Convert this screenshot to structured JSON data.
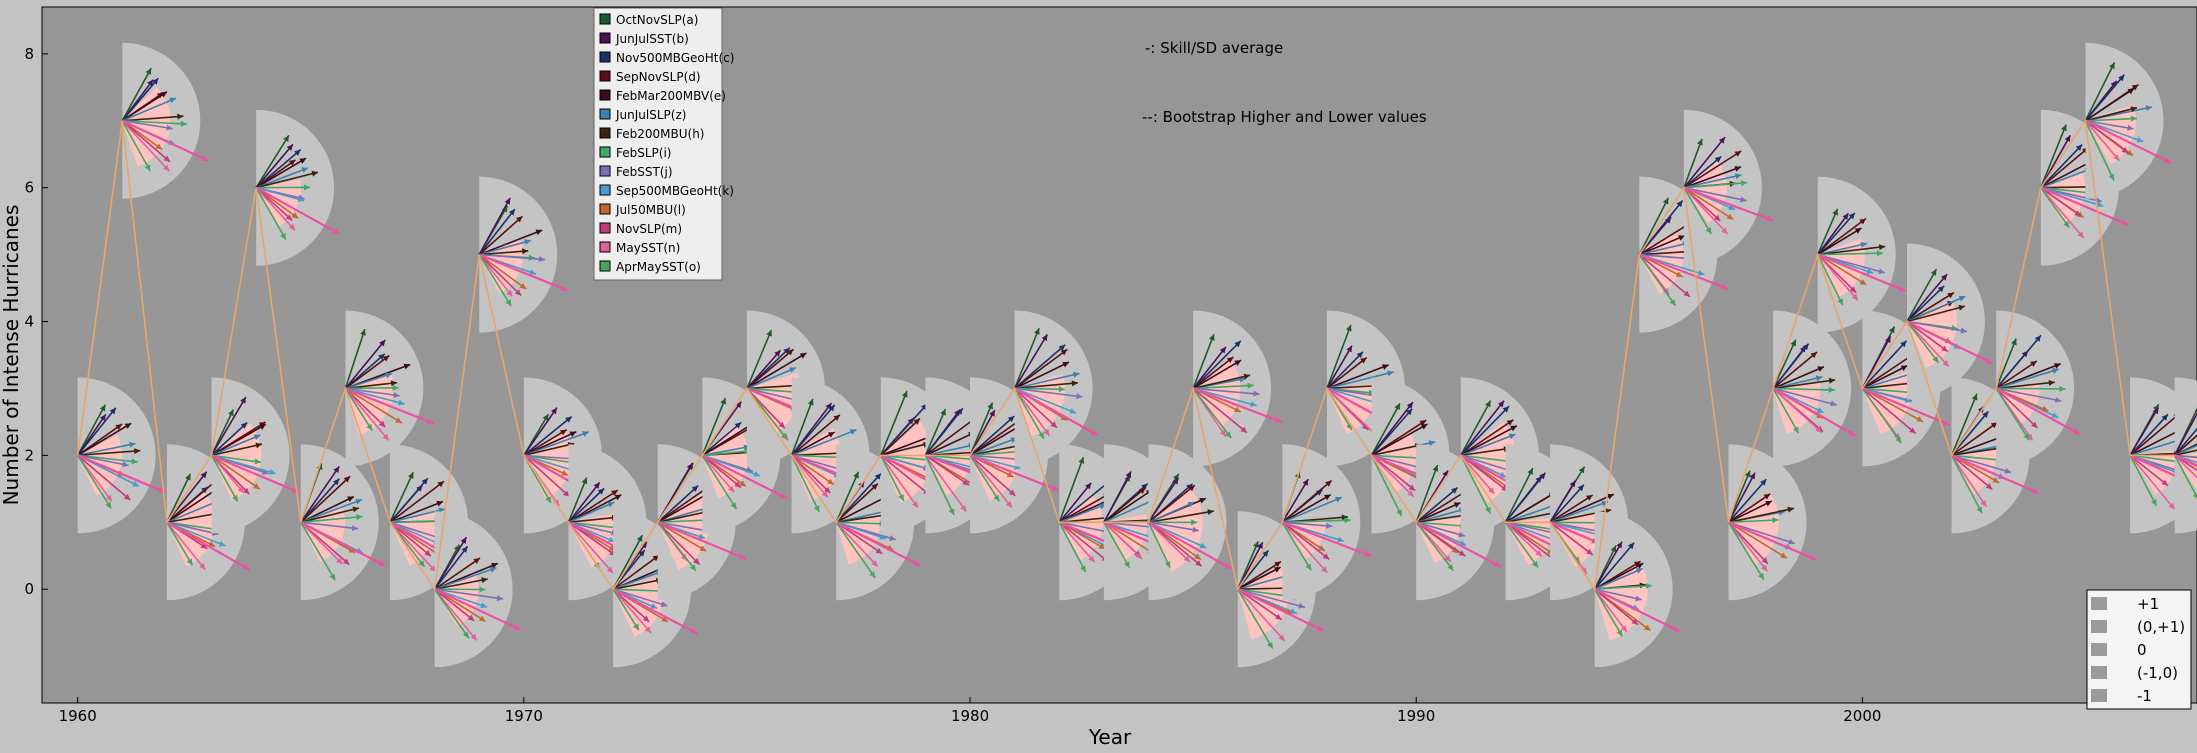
{
  "chart_data": {
    "type": "line",
    "xlabel": "Year",
    "ylabel": "Number of Intense Hurricanes",
    "xlim": [
      1959.2,
      2007.5
    ],
    "ylim": [
      -1.7,
      8.7
    ],
    "xticks": [
      1960,
      1970,
      1980,
      1990,
      2000
    ],
    "yticks": [
      0,
      2,
      4,
      6,
      8
    ],
    "grid": false,
    "background_color": "#969696",
    "line_color": "#e8a66a",
    "x": [
      1960,
      1961,
      1962,
      1963,
      1964,
      1965,
      1966,
      1967,
      1968,
      1969,
      1970,
      1971,
      1972,
      1973,
      1974,
      1975,
      1976,
      1977,
      1978,
      1979,
      1980,
      1981,
      1982,
      1983,
      1984,
      1985,
      1986,
      1987,
      1988,
      1989,
      1990,
      1991,
      1992,
      1993,
      1994,
      1995,
      1996,
      1997,
      1998,
      1999,
      2000,
      2001,
      2002,
      2003,
      2004,
      2005,
      2006,
      2007
    ],
    "y": [
      2,
      7,
      1,
      2,
      6,
      1,
      3,
      1,
      0,
      5,
      2,
      1,
      0,
      1,
      2,
      3,
      2,
      1,
      2,
      2,
      2,
      3,
      1,
      1,
      1,
      3,
      0,
      1,
      3,
      2,
      1,
      2,
      1,
      1,
      0,
      5,
      6,
      1,
      3,
      5,
      3,
      4,
      2,
      3,
      6,
      7,
      2,
      2
    ],
    "series": [
      {
        "name": "OctNovSLP(a)",
        "color": "#1e5a2a"
      },
      {
        "name": "JunJulSST(b)",
        "color": "#4a1158"
      },
      {
        "name": "Nov500MBGeoHt(c)",
        "color": "#1a2f6b"
      },
      {
        "name": "SepNovSLP(d)",
        "color": "#5a1010"
      },
      {
        "name": "FebMar200MBV(e)",
        "color": "#3a0c1a"
      },
      {
        "name": "JunJulSLP(z)",
        "color": "#3d7fae"
      },
      {
        "name": "Feb200MBU(h)",
        "color": "#3b2410"
      },
      {
        "name": "FebSLP(i)",
        "color": "#3ca86a"
      },
      {
        "name": "FebSST(j)",
        "color": "#7d6fb3"
      },
      {
        "name": "Sep500MBGeoHt(k)",
        "color": "#4a9bc9"
      },
      {
        "name": "Jul50MBU(l)",
        "color": "#c0682e"
      },
      {
        "name": "NovSLP(m)",
        "color": "#c23a7a"
      },
      {
        "name": "MaySST(n)",
        "color": "#e0609a"
      },
      {
        "name": "AprMaySST(o)",
        "color": "#4aa35a"
      }
    ],
    "annotations": [
      {
        "text": "-: Skill/SD average",
        "color": "#e9a0b0"
      },
      {
        "text": "--: Bootstrap Higher and Lower values",
        "color": "#f0d0c0"
      }
    ],
    "skill_legend": [
      "+1",
      "(0,+1)",
      "0",
      "(-1,0)",
      "-1"
    ],
    "average_arrow_color": "#ee4fa0",
    "wedge_outer_color": "#c4c4c4",
    "wedge_inner_color": "#ffc4c0"
  }
}
